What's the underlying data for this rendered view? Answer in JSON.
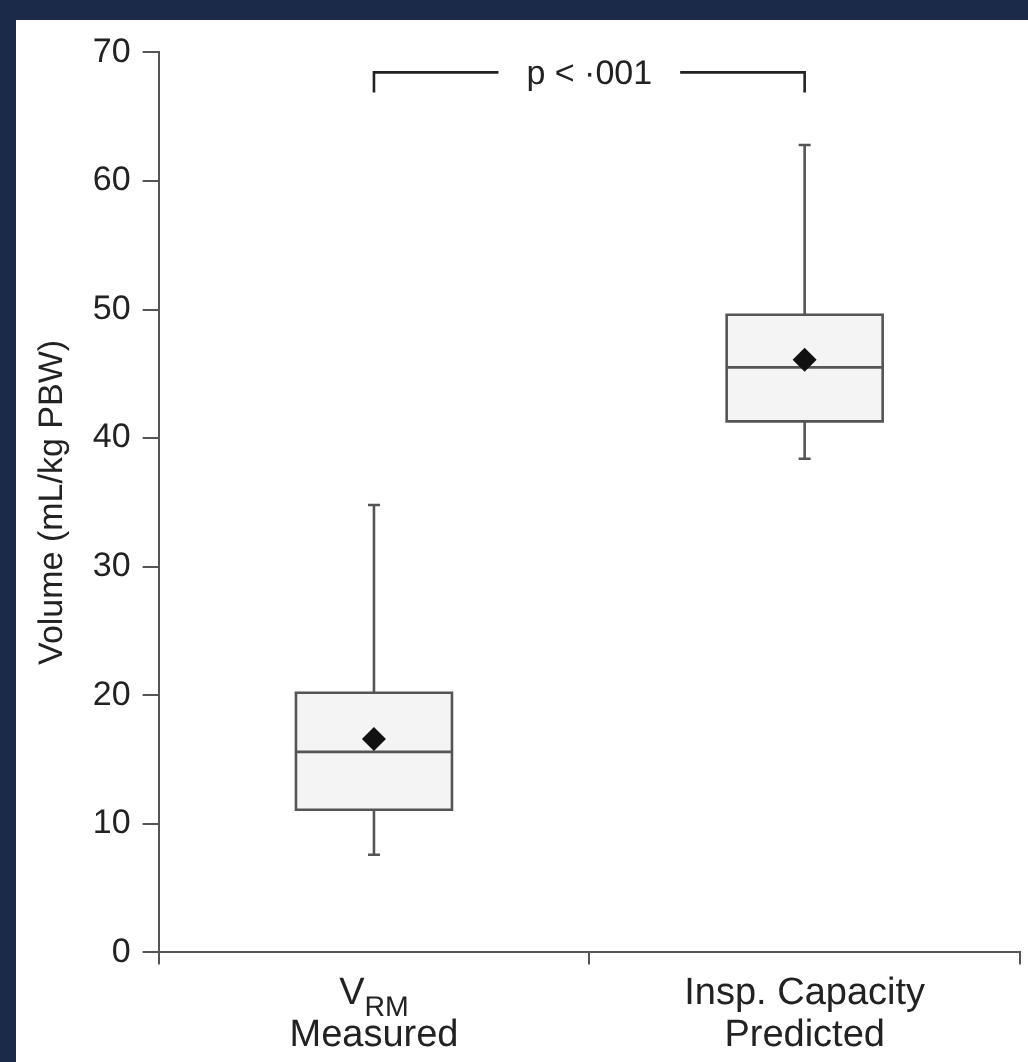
{
  "chart_data": {
    "type": "box",
    "ylabel": "Volume (mL/kg PBW)",
    "categories": [
      "V$_{RM}$\nMeasured",
      "Insp. Capacity\nPredicted"
    ],
    "boxes": [
      {
        "low": 7.6,
        "q1": 11.1,
        "median": 15.6,
        "q3": 20.2,
        "high": 34.8,
        "mean": 16.6
      },
      {
        "low": 38.4,
        "q1": 41.3,
        "median": 45.5,
        "q3": 49.6,
        "high": 62.8,
        "mean": 46.1
      }
    ],
    "color": "#f4f4f4",
    "ylim": [
      0,
      70
    ],
    "yticks": [
      0,
      10,
      20,
      30,
      40,
      50,
      60,
      70
    ],
    "annotations": [
      "p < ·001"
    ],
    "grid": false,
    "legend": false
  }
}
